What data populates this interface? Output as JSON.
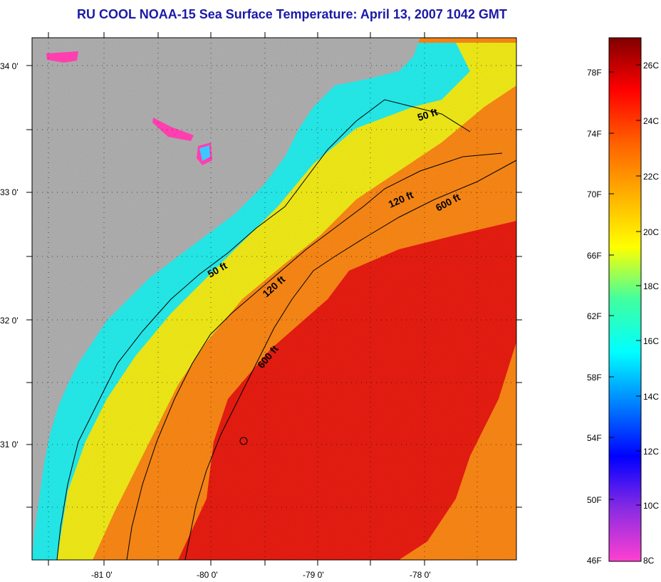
{
  "title": "RU COOL  NOAA-15  Sea Surface Temperature:  April 13, 2007 1042 GMT",
  "map": {
    "lat_labels": [
      "34 0'",
      "33 0'",
      "32 0'",
      "31 0'"
    ],
    "lon_labels": [
      "-81 0'",
      "-80 0'",
      "-79 0'",
      "-78 0'"
    ],
    "contour_labels": [
      {
        "id": "c50-north",
        "text": "50 ft"
      },
      {
        "id": "c50-south",
        "text": "50 ft"
      },
      {
        "id": "c120-north",
        "text": "120 ft"
      },
      {
        "id": "c120-south",
        "text": "120 ft"
      },
      {
        "id": "c600-north",
        "text": "600 ft"
      },
      {
        "id": "c600-south",
        "text": "600 ft"
      }
    ],
    "colors": {
      "land": "#b3b3b3",
      "coastal": "#26f0f0",
      "shelf": "#f5ef18",
      "outer": "#ff8a16",
      "gulf_stream": "#ec1d12"
    }
  },
  "colorbar": {
    "f_labels": [
      "78F",
      "74F",
      "70F",
      "66F",
      "62F",
      "58F",
      "54F",
      "50F",
      "46F"
    ],
    "c_labels": [
      "26C",
      "24C",
      "22C",
      "20C",
      "18C",
      "16C",
      "14C",
      "12C",
      "10C",
      "8C"
    ],
    "gradient": [
      "#ff40d0",
      "#8a2be2",
      "#0000ff",
      "#0080ff",
      "#00ffff",
      "#40ffa0",
      "#ffff00",
      "#ffb000",
      "#ff6000",
      "#ff0000",
      "#800000"
    ]
  }
}
